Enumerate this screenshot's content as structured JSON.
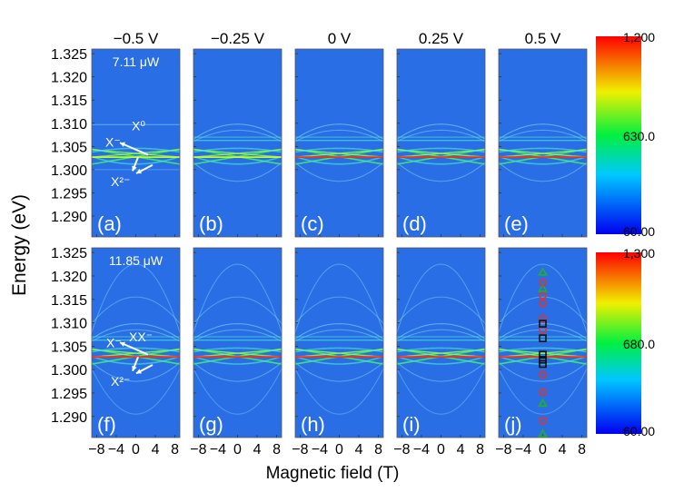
{
  "chart_data": {
    "type": "heatmap",
    "xlabel": "Magnetic field (T)",
    "ylabel": "Energy (eV)",
    "xlim": [
      -9,
      9
    ],
    "ylim": [
      1.2855,
      1.326
    ],
    "x_ticks": [
      "-8",
      "-4",
      "0",
      "4",
      "8"
    ],
    "y_ticks": [
      "1.325",
      "1.320",
      "1.315",
      "1.310",
      "1.305",
      "1.300",
      "1.295",
      "1.290"
    ],
    "column_titles": [
      "−0.5 V",
      "−0.25 V",
      "0 V",
      "0.25 V",
      "0.5 V"
    ],
    "rows": [
      {
        "power_label": "7.11 μW",
        "panel_labels": [
          "(a)",
          "(b)",
          "(c)",
          "(d)",
          "(e)"
        ],
        "colorbar": {
          "min": 60,
          "max": 1200,
          "tick_labels": [
            "1,200",
            "630.0",
            "60.00"
          ]
        },
        "annotations": [
          "X⁰",
          "X⁻",
          "X²⁻"
        ]
      },
      {
        "power_label": "11.85 μW",
        "panel_labels": [
          "(f)",
          "(g)",
          "(h)",
          "(i)",
          "(j)"
        ],
        "colorbar": {
          "min": 60,
          "max": 1300,
          "tick_labels": [
            "1,300",
            "680.0",
            "60.00"
          ]
        },
        "annotations": [
          "X⁻",
          "XX⁻",
          "X²⁻"
        ]
      }
    ],
    "markers_panel_j": {
      "field_T": 0,
      "triangles": {
        "color": "#22b02a",
        "energies": [
          1.3208,
          1.3173,
          1.2928,
          1.2863
        ]
      },
      "circles": {
        "color": "#e8321e",
        "energies": [
          1.3186,
          1.3158,
          1.3141,
          1.3109,
          1.3085,
          1.2989,
          1.2952,
          1.2891
        ]
      },
      "squares": {
        "color": "#111111",
        "energies": [
          1.3098,
          1.3067,
          1.3032,
          1.3021,
          1.3012
        ]
      }
    },
    "colormap": [
      "#0000ff",
      "#00c8ff",
      "#00ff40",
      "#ffff00",
      "#ff0000"
    ],
    "background_color": "#2a6ee6"
  }
}
